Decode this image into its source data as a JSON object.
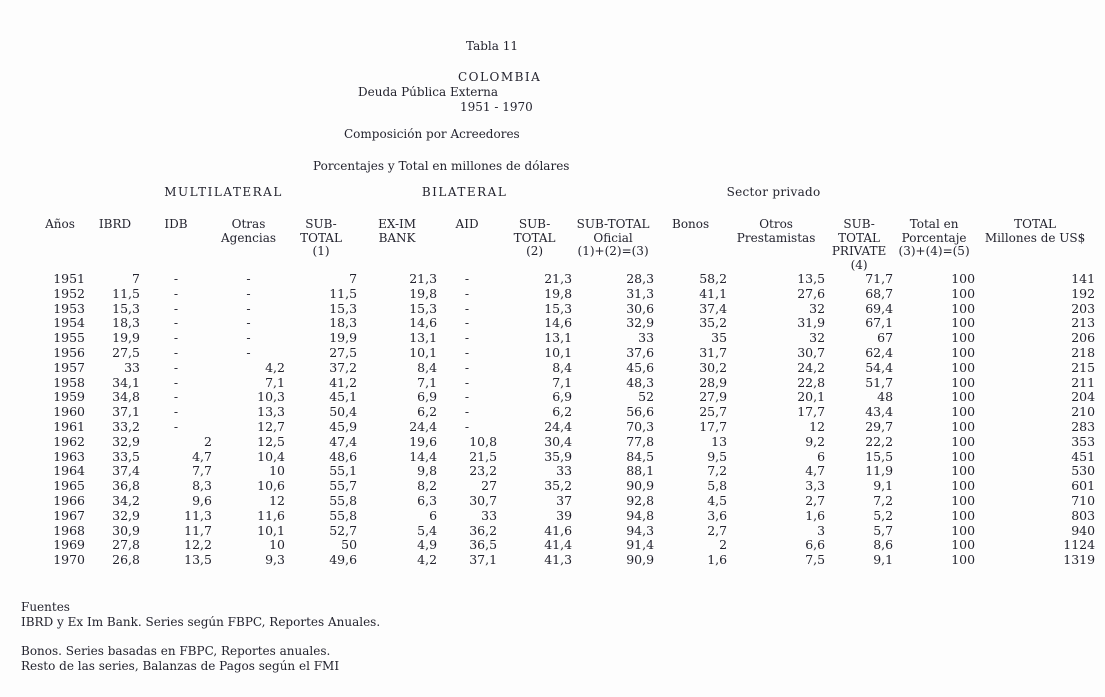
{
  "title": {
    "table_label": "Tabla 11",
    "country": "COLOMBIA",
    "subject": "Deuda Pública Externa",
    "period": "1951 - 1970",
    "subtitle1": "Composición por Acreedores",
    "subtitle2": "Porcentajes y Total en millones de dólares"
  },
  "table": {
    "group_headers": {
      "multilateral": "MULTILATERAL",
      "bilateral": "BILATERAL",
      "sector_privado": "Sector privado"
    },
    "columns": [
      "Años",
      "IBRD",
      "IDB",
      "Otras\nAgencias",
      "SUB-\nTOTAL\n(1)",
      "EX-IM\nBANK",
      "AID",
      "SUB-\nTOTAL\n(2)",
      "SUB-TOTAL\nOficial\n(1)+(2)=(3)",
      "Bonos",
      "Otros\nPrestamistas",
      "SUB-TOTAL\nPRIVATE\n(4)",
      "Total en\nPorcentaje\n(3)+(4)=(5)",
      "TOTAL\nMillones de US$"
    ],
    "rows": [
      [
        "1951",
        "7",
        "-",
        "-",
        "7",
        "21,3",
        "-",
        "21,3",
        "28,3",
        "58,2",
        "13,5",
        "71,7",
        "100",
        "141"
      ],
      [
        "1952",
        "11,5",
        "-",
        "-",
        "11,5",
        "19,8",
        "-",
        "19,8",
        "31,3",
        "41,1",
        "27,6",
        "68,7",
        "100",
        "192"
      ],
      [
        "1953",
        "15,3",
        "-",
        "-",
        "15,3",
        "15,3",
        "-",
        "15,3",
        "30,6",
        "37,4",
        "32",
        "69,4",
        "100",
        "203"
      ],
      [
        "1954",
        "18,3",
        "-",
        "-",
        "18,3",
        "14,6",
        "-",
        "14,6",
        "32,9",
        "35,2",
        "31,9",
        "67,1",
        "100",
        "213"
      ],
      [
        "1955",
        "19,9",
        "-",
        "-",
        "19,9",
        "13,1",
        "-",
        "13,1",
        "33",
        "35",
        "32",
        "67",
        "100",
        "206"
      ],
      [
        "1956",
        "27,5",
        "-",
        "-",
        "27,5",
        "10,1",
        "-",
        "10,1",
        "37,6",
        "31,7",
        "30,7",
        "62,4",
        "100",
        "218"
      ],
      [
        "1957",
        "33",
        "-",
        "4,2",
        "37,2",
        "8,4",
        "-",
        "8,4",
        "45,6",
        "30,2",
        "24,2",
        "54,4",
        "100",
        "215"
      ],
      [
        "1958",
        "34,1",
        "-",
        "7,1",
        "41,2",
        "7,1",
        "-",
        "7,1",
        "48,3",
        "28,9",
        "22,8",
        "51,7",
        "100",
        "211"
      ],
      [
        "1959",
        "34,8",
        "-",
        "10,3",
        "45,1",
        "6,9",
        "-",
        "6,9",
        "52",
        "27,9",
        "20,1",
        "48",
        "100",
        "204"
      ],
      [
        "1960",
        "37,1",
        "-",
        "13,3",
        "50,4",
        "6,2",
        "-",
        "6,2",
        "56,6",
        "25,7",
        "17,7",
        "43,4",
        "100",
        "210"
      ],
      [
        "1961",
        "33,2",
        "-",
        "12,7",
        "45,9",
        "24,4",
        "-",
        "24,4",
        "70,3",
        "17,7",
        "12",
        "29,7",
        "100",
        "283"
      ],
      [
        "1962",
        "32,9",
        "2",
        "12,5",
        "47,4",
        "19,6",
        "10,8",
        "30,4",
        "77,8",
        "13",
        "9,2",
        "22,2",
        "100",
        "353"
      ],
      [
        "1963",
        "33,5",
        "4,7",
        "10,4",
        "48,6",
        "14,4",
        "21,5",
        "35,9",
        "84,5",
        "9,5",
        "6",
        "15,5",
        "100",
        "451"
      ],
      [
        "1964",
        "37,4",
        "7,7",
        "10",
        "55,1",
        "9,8",
        "23,2",
        "33",
        "88,1",
        "7,2",
        "4,7",
        "11,9",
        "100",
        "530"
      ],
      [
        "1965",
        "36,8",
        "8,3",
        "10,6",
        "55,7",
        "8,2",
        "27",
        "35,2",
        "90,9",
        "5,8",
        "3,3",
        "9,1",
        "100",
        "601"
      ],
      [
        "1966",
        "34,2",
        "9,6",
        "12",
        "55,8",
        "6,3",
        "30,7",
        "37",
        "92,8",
        "4,5",
        "2,7",
        "7,2",
        "100",
        "710"
      ],
      [
        "1967",
        "32,9",
        "11,3",
        "11,6",
        "55,8",
        "6",
        "33",
        "39",
        "94,8",
        "3,6",
        "1,6",
        "5,2",
        "100",
        "803"
      ],
      [
        "1968",
        "30,9",
        "11,7",
        "10,1",
        "52,7",
        "5,4",
        "36,2",
        "41,6",
        "94,3",
        "2,7",
        "3",
        "5,7",
        "100",
        "940"
      ],
      [
        "1969",
        "27,8",
        "12,2",
        "10",
        "50",
        "4,9",
        "36,5",
        "41,4",
        "91,4",
        "2",
        "6,6",
        "8,6",
        "100",
        "1124"
      ],
      [
        "1970",
        "26,8",
        "13,5",
        "9,3",
        "49,6",
        "4,2",
        "37,1",
        "41,3",
        "90,9",
        "1,6",
        "7,5",
        "9,1",
        "100",
        "1319"
      ]
    ]
  },
  "footer": {
    "sources_title": "Fuentes",
    "source1": "IBRD y Ex Im Bank. Series según FBPC, Reportes Anuales.",
    "source2": "Bonos. Series basadas en FBPC, Reportes anuales.",
    "source3": "Resto de las series, Balanzas de Pagos según el FMI"
  }
}
